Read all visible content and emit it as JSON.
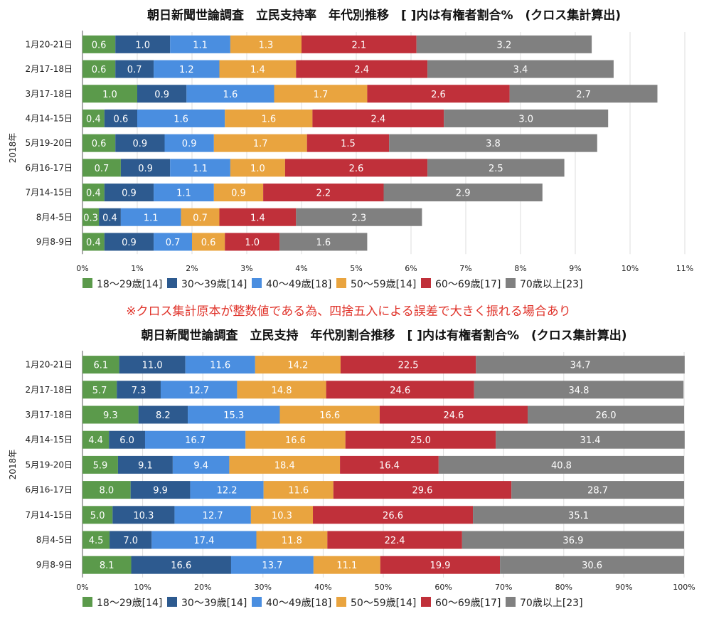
{
  "note": "※クロス集計原本が整数値である為、四捨五入による誤差で大きく振れる場合あり",
  "colors": [
    "#5b9a4b",
    "#2d5a8f",
    "#4a8ee0",
    "#e9a43f",
    "#c0303a",
    "#808080"
  ],
  "chart_data": [
    {
      "type": "bar",
      "orientation": "horizontal",
      "stacked": true,
      "title": "朝日新聞世論調査　立民支持率　年代別推移　[ ]内は有権者割合%　(クロス集計算出)",
      "ylabel": "2018年",
      "xlim": [
        0,
        11
      ],
      "ticks": [
        "0%",
        "1%",
        "2%",
        "3%",
        "4%",
        "5%",
        "6%",
        "7%",
        "8%",
        "9%",
        "10%",
        "11%"
      ],
      "grid": true,
      "legend_position": "bottom",
      "categories": [
        "1月20-21日",
        "2月17-18日",
        "3月17-18日",
        "4月14-15日",
        "5月19-20日",
        "6月16-17日",
        "7月14-15日",
        "8月4-5日",
        "9月8-9日"
      ],
      "series": [
        {
          "name": "18〜29歳[14]",
          "values": [
            0.6,
            0.6,
            1.0,
            0.4,
            0.6,
            0.7,
            0.4,
            0.3,
            0.4
          ]
        },
        {
          "name": "30〜39歳[14]",
          "values": [
            1.0,
            0.7,
            0.9,
            0.6,
            0.9,
            0.9,
            0.9,
            0.4,
            0.9
          ]
        },
        {
          "name": "40〜49歳[18]",
          "values": [
            1.1,
            1.2,
            1.6,
            1.6,
            0.9,
            1.1,
            1.1,
            1.1,
            0.7
          ]
        },
        {
          "name": "50〜59歳[14]",
          "values": [
            1.3,
            1.4,
            1.7,
            1.6,
            1.7,
            1.0,
            0.9,
            0.7,
            0.6
          ]
        },
        {
          "name": "60〜69歳[17]",
          "values": [
            2.1,
            2.4,
            2.6,
            2.4,
            1.5,
            2.6,
            2.2,
            1.4,
            1.0
          ]
        },
        {
          "name": "70歳以上[23]",
          "values": [
            3.2,
            3.4,
            2.7,
            3.0,
            3.8,
            2.5,
            2.9,
            2.3,
            1.6
          ]
        }
      ]
    },
    {
      "type": "bar",
      "orientation": "horizontal",
      "stacked": true,
      "title": "朝日新聞世論調査　立民支持　年代別割合推移　[ ]内は有権者割合%　(クロス集計算出)",
      "ylabel": "2018年",
      "xlim": [
        0,
        100
      ],
      "ticks": [
        "0%",
        "10%",
        "20%",
        "30%",
        "40%",
        "50%",
        "60%",
        "70%",
        "80%",
        "90%",
        "100%"
      ],
      "grid": true,
      "legend_position": "bottom",
      "categories": [
        "1月20-21日",
        "2月17-18日",
        "3月17-18日",
        "4月14-15日",
        "5月19-20日",
        "6月16-17日",
        "7月14-15日",
        "8月4-5日",
        "9月8-9日"
      ],
      "series": [
        {
          "name": "18〜29歳[14]",
          "values": [
            6.1,
            5.7,
            9.3,
            4.4,
            5.9,
            8.0,
            5.0,
            4.5,
            8.1
          ]
        },
        {
          "name": "30〜39歳[14]",
          "values": [
            11.0,
            7.3,
            8.2,
            6.0,
            9.1,
            9.9,
            10.3,
            7.0,
            16.6
          ]
        },
        {
          "name": "40〜49歳[18]",
          "values": [
            11.6,
            12.7,
            15.3,
            16.7,
            9.4,
            12.2,
            12.7,
            17.4,
            13.7
          ]
        },
        {
          "name": "50〜59歳[14]",
          "values": [
            14.2,
            14.8,
            16.6,
            16.6,
            18.4,
            11.6,
            10.3,
            11.8,
            11.1
          ]
        },
        {
          "name": "60〜69歳[17]",
          "values": [
            22.5,
            24.6,
            24.6,
            25.0,
            16.4,
            29.6,
            26.6,
            22.4,
            19.9
          ]
        },
        {
          "name": "70歳以上[23]",
          "values": [
            34.7,
            34.8,
            26.0,
            31.4,
            40.8,
            28.7,
            35.1,
            36.9,
            30.6
          ]
        }
      ]
    }
  ]
}
